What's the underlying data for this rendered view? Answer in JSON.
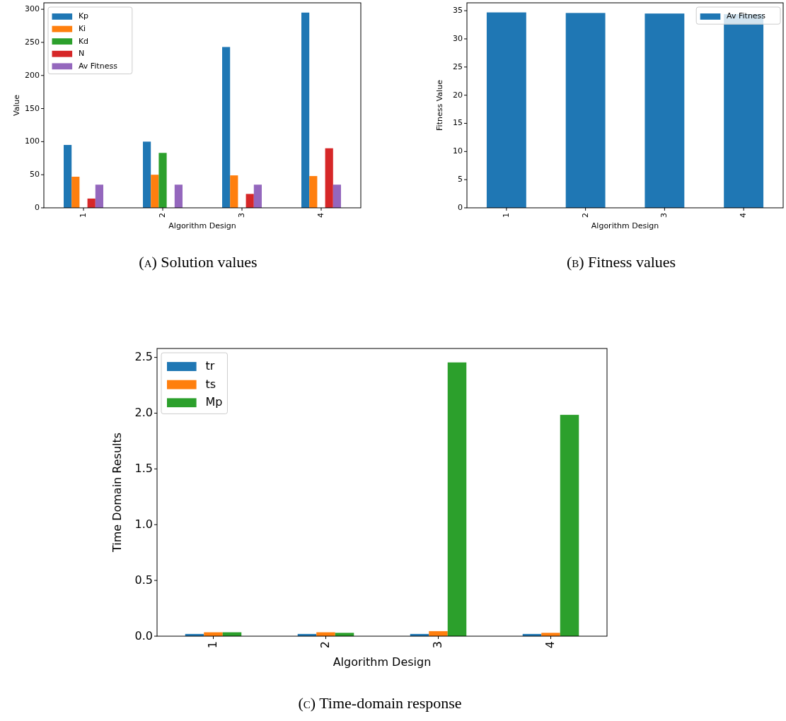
{
  "chart_data": [
    {
      "type": "bar",
      "categories": [
        "1",
        "2",
        "3",
        "4"
      ],
      "xlabel": "Algorithm Design",
      "ylabel": "Value",
      "ylim": [
        0,
        309.75
      ],
      "yticks": [
        0,
        50,
        100,
        150,
        200,
        250,
        300
      ],
      "legend": "top left",
      "annotations": [
        "(a) Solution values"
      ],
      "series": [
        {
          "name": "Kp",
          "color": "#1f77b4",
          "values": [
            95,
            100,
            243,
            295
          ]
        },
        {
          "name": "Ki",
          "color": "#ff7f0e",
          "values": [
            47,
            50,
            49,
            48
          ]
        },
        {
          "name": "Kd",
          "color": "#2ca02c",
          "values": [
            0,
            83,
            0,
            0
          ]
        },
        {
          "name": "N",
          "color": "#d62728",
          "values": [
            14,
            0,
            21,
            90
          ]
        },
        {
          "name": "Av Fitness",
          "color": "#9467bd",
          "values": [
            35,
            35,
            35,
            35
          ]
        }
      ]
    },
    {
      "type": "bar",
      "categories": [
        "1",
        "2",
        "3",
        "4"
      ],
      "xlabel": "Algorithm Design",
      "ylabel": "Fitness Value",
      "ylim": [
        0,
        36.4
      ],
      "yticks": [
        0,
        5,
        10,
        15,
        20,
        25,
        30,
        35
      ],
      "legend": "top right",
      "annotations": [
        "(b) Fitness values"
      ],
      "series": [
        {
          "name": "Av Fitness",
          "color": "#1f77b4",
          "values": [
            34.7,
            34.6,
            34.5,
            34.4
          ]
        }
      ]
    },
    {
      "type": "bar",
      "categories": [
        "1",
        "2",
        "3",
        "4"
      ],
      "xlabel": "Algorithm Design",
      "ylabel": "Time Domain Results",
      "ylim": [
        0,
        2.58
      ],
      "yticks": [
        {
          "value": 0,
          "label": "0.0"
        },
        {
          "value": 0.5,
          "label": "0.5"
        },
        {
          "value": 1,
          "label": "1.0"
        },
        {
          "value": 1.5,
          "label": "1.5"
        },
        {
          "value": 2,
          "label": "2.0"
        },
        {
          "value": 2.5,
          "label": "2.5"
        }
      ],
      "legend": "top left",
      "annotations": [
        "(c) Time-domain response"
      ],
      "series": [
        {
          "name": "tr",
          "color": "#1f77b4",
          "values": [
            0.02,
            0.02,
            0.02,
            0.02
          ]
        },
        {
          "name": "ts",
          "color": "#ff7f0e",
          "values": [
            0.035,
            0.035,
            0.045,
            0.03
          ]
        },
        {
          "name": "Mp",
          "color": "#2ca02c",
          "values": [
            0.035,
            0.03,
            2.455,
            1.985
          ]
        }
      ]
    }
  ]
}
